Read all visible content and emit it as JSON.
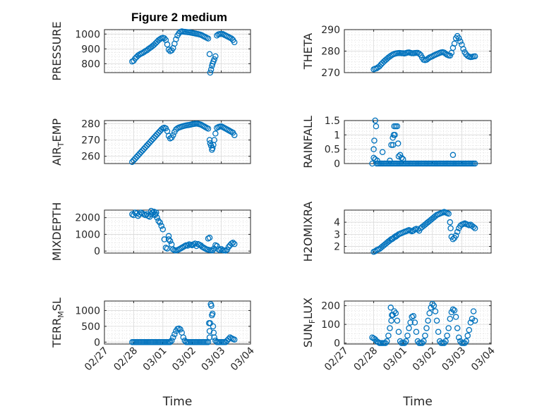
{
  "figure": {
    "title": "Figure 2 medium",
    "xlabel": "Time"
  },
  "chart_data": [
    {
      "type": "scatter",
      "ylabel": "PRESSURE",
      "yticks": [
        800,
        900,
        1000
      ],
      "ylim": [
        740,
        1030
      ],
      "xlim": [
        0,
        5
      ],
      "xticks": [
        "02/27",
        "02/28",
        "03/01",
        "03/02",
        "03/03",
        "03/04"
      ],
      "grid": true,
      "x": [
        0.95,
        1.0,
        1.05,
        1.1,
        1.15,
        1.2,
        1.25,
        1.3,
        1.35,
        1.4,
        1.45,
        1.5,
        1.55,
        1.6,
        1.65,
        1.7,
        1.75,
        1.8,
        1.85,
        1.9,
        1.95,
        2.0,
        2.05,
        2.1,
        2.15,
        2.2,
        2.25,
        2.3,
        2.35,
        2.4,
        2.45,
        2.5,
        2.55,
        2.6,
        2.65,
        2.7,
        2.75,
        2.8,
        2.85,
        2.9,
        2.95,
        3.0,
        3.05,
        3.1,
        3.15,
        3.2,
        3.25,
        3.3,
        3.35,
        3.4,
        3.45,
        3.5,
        3.55,
        3.6,
        3.62,
        3.65,
        3.68,
        3.7,
        3.73,
        3.76,
        3.8,
        3.85,
        3.9,
        3.95,
        4.0,
        4.05,
        4.1,
        4.15,
        4.2,
        4.25,
        4.3,
        4.35,
        4.4,
        4.45
      ],
      "y": [
        815,
        820,
        835,
        845,
        855,
        862,
        868,
        872,
        878,
        885,
        890,
        898,
        905,
        912,
        920,
        928,
        938,
        948,
        958,
        965,
        972,
        975,
        972,
        960,
        930,
        895,
        885,
        890,
        905,
        935,
        965,
        990,
        1005,
        1015,
        1018,
        1016,
        1015,
        1014,
        1013,
        1012,
        1010,
        1008,
        1006,
        1004,
        1002,
        1000,
        998,
        995,
        990,
        985,
        980,
        975,
        970,
        865,
        740,
        760,
        785,
        800,
        815,
        830,
        850,
        990,
        998,
        1000,
        1001,
        1000,
        995,
        990,
        985,
        980,
        975,
        970,
        960,
        945
      ]
    },
    {
      "type": "scatter",
      "ylabel": "THETA",
      "yticks": [
        270,
        280,
        290
      ],
      "ylim": [
        270,
        290
      ],
      "xlim": [
        0,
        5
      ],
      "xticks": [
        "02/27",
        "02/28",
        "03/01",
        "03/02",
        "03/03",
        "03/04"
      ],
      "grid": true,
      "x": [
        1.0,
        1.05,
        1.1,
        1.15,
        1.2,
        1.25,
        1.3,
        1.35,
        1.4,
        1.45,
        1.5,
        1.55,
        1.6,
        1.65,
        1.7,
        1.75,
        1.8,
        1.85,
        1.9,
        1.95,
        2.0,
        2.05,
        2.1,
        2.15,
        2.2,
        2.25,
        2.3,
        2.35,
        2.4,
        2.45,
        2.5,
        2.55,
        2.6,
        2.65,
        2.7,
        2.75,
        2.8,
        2.85,
        2.9,
        2.95,
        3.0,
        3.05,
        3.1,
        3.15,
        3.2,
        3.25,
        3.3,
        3.35,
        3.4,
        3.45,
        3.5,
        3.55,
        3.6,
        3.65,
        3.7,
        3.75,
        3.8,
        3.85,
        3.9,
        3.95,
        4.0,
        4.05,
        4.1,
        4.15,
        4.2,
        4.25,
        4.3,
        4.35,
        4.4,
        4.45
      ],
      "y": [
        271.5,
        271.8,
        272,
        272.5,
        273,
        273.8,
        274.5,
        275.2,
        275.8,
        276.4,
        277,
        277.5,
        278,
        278.4,
        278.7,
        278.9,
        279,
        279.1,
        279.1,
        279,
        279,
        278.9,
        279.1,
        279.3,
        279.4,
        279.2,
        279,
        279,
        279.1,
        279.2,
        279.2,
        278.8,
        278.2,
        277,
        276,
        275.8,
        276,
        276.5,
        277,
        277.3,
        277.6,
        278,
        278.3,
        278.6,
        278.9,
        279.2,
        279.4,
        279.5,
        279.3,
        278.8,
        278.3,
        278,
        277.9,
        279.2,
        281.5,
        283.5,
        286,
        287,
        286,
        284.5,
        283,
        281,
        279.5,
        278.5,
        277.8,
        277.4,
        277.2,
        277.3,
        277.5,
        277.6
      ]
    },
    {
      "type": "scatter",
      "ylabel": "AIR_TEMP",
      "yticks": [
        260,
        270,
        280
      ],
      "ylim": [
        255.5,
        282
      ],
      "xlim": [
        0,
        5
      ],
      "xticks": [
        "02/27",
        "02/28",
        "03/01",
        "03/02",
        "03/03",
        "03/04"
      ],
      "grid": true,
      "x": [
        0.95,
        1.0,
        1.05,
        1.1,
        1.15,
        1.2,
        1.25,
        1.3,
        1.35,
        1.4,
        1.45,
        1.5,
        1.55,
        1.6,
        1.65,
        1.7,
        1.75,
        1.8,
        1.85,
        1.9,
        1.95,
        2.0,
        2.05,
        2.1,
        2.15,
        2.2,
        2.25,
        2.3,
        2.35,
        2.4,
        2.45,
        2.5,
        2.55,
        2.6,
        2.65,
        2.7,
        2.75,
        2.8,
        2.85,
        2.9,
        2.95,
        3.0,
        3.05,
        3.1,
        3.15,
        3.2,
        3.25,
        3.3,
        3.35,
        3.4,
        3.45,
        3.5,
        3.55,
        3.6,
        3.62,
        3.65,
        3.68,
        3.7,
        3.73,
        3.76,
        3.8,
        3.85,
        3.9,
        3.95,
        4.0,
        4.05,
        4.1,
        4.15,
        4.2,
        4.25,
        4.3,
        4.35,
        4.4,
        4.45
      ],
      "y": [
        256.5,
        257.5,
        258.5,
        259.5,
        260.5,
        261.5,
        262.5,
        263.5,
        264.5,
        265.5,
        266.5,
        267.5,
        268.5,
        269.5,
        270.5,
        271.5,
        272.5,
        273.5,
        274.5,
        275.5,
        276.5,
        277.3,
        277.6,
        277.2,
        275.5,
        272.5,
        271,
        271.5,
        273,
        275,
        276.5,
        277.2,
        277.7,
        278,
        278.3,
        278.6,
        278.8,
        279,
        279.2,
        279.3,
        279.5,
        279.7,
        279.9,
        280,
        280.1,
        280,
        279.8,
        279.5,
        279,
        278.5,
        278,
        277.5,
        277,
        270,
        268,
        266.5,
        264,
        265,
        267,
        270,
        274,
        277.5,
        278,
        278.3,
        278.4,
        278,
        277.5,
        277,
        276.5,
        276,
        275.5,
        275,
        274.5,
        273
      ]
    },
    {
      "type": "scatter",
      "ylabel": "RAINFALL",
      "yticks": [
        0,
        0.5,
        1,
        1.5
      ],
      "ylim": [
        0,
        1.5
      ],
      "xlim": [
        0,
        5
      ],
      "xticks": [
        "02/27",
        "02/28",
        "03/01",
        "03/02",
        "03/03",
        "03/04"
      ],
      "grid": true,
      "x": [
        0.95,
        1.0,
        1.02,
        1.05,
        1.08,
        1.1,
        1.15,
        1.2,
        1.25,
        1.3,
        1.35,
        1.4,
        1.45,
        1.5,
        1.55,
        1.6,
        1.65,
        1.7,
        1.75,
        1.8,
        1.85,
        1.9,
        1.95,
        2.0,
        2.05,
        2.1,
        2.15,
        2.2,
        2.25,
        2.3,
        2.35,
        2.4,
        2.45,
        2.5,
        2.55,
        2.6,
        2.65,
        2.7,
        2.75,
        2.8,
        2.85,
        2.9,
        2.95,
        3.0,
        3.05,
        3.1,
        3.15,
        3.2,
        3.25,
        3.3,
        3.35,
        3.4,
        3.45,
        3.5,
        3.55,
        3.6,
        3.65,
        3.7,
        3.75,
        3.8,
        3.85,
        3.9,
        3.95,
        4.0,
        4.05,
        4.1,
        4.15,
        4.2,
        4.25,
        4.3,
        4.35,
        4.4,
        4.45,
        1.05,
        1.0,
        1.12,
        1.3,
        1.55,
        1.6,
        1.65,
        1.68,
        1.72,
        1.75,
        1.8,
        1.83,
        1.85,
        1.9,
        1.95,
        2.0,
        1.7,
        1.66,
        3.7
      ],
      "y": [
        0,
        0.5,
        0.8,
        1.5,
        1.3,
        0,
        0,
        0,
        0,
        0,
        0,
        0,
        0,
        0,
        0,
        0,
        0,
        0,
        0,
        0,
        0,
        0,
        0,
        0,
        0,
        0,
        0,
        0,
        0,
        0,
        0,
        0,
        0,
        0,
        0,
        0,
        0,
        0,
        0,
        0,
        0,
        0,
        0,
        0,
        0,
        0,
        0,
        0,
        0,
        0,
        0,
        0,
        0,
        0,
        0,
        0,
        0,
        0,
        0,
        0,
        0,
        0,
        0,
        0,
        0,
        0,
        0,
        0,
        0,
        0,
        0,
        0,
        0,
        0.15,
        0.2,
        0.1,
        0.4,
        0.1,
        0.65,
        0.9,
        1.0,
        1.0,
        1.3,
        1.3,
        0.7,
        0.25,
        0.3,
        0.2,
        0.15,
        1.3,
        0.65,
        0.3
      ]
    },
    {
      "type": "scatter",
      "ylabel": "MIXDEPTH",
      "yticks": [
        0,
        1000,
        2000
      ],
      "ylim": [
        -120,
        2450
      ],
      "xlim": [
        0,
        5
      ],
      "xticks": [
        "02/27",
        "02/28",
        "03/01",
        "03/02",
        "03/03",
        "03/04"
      ],
      "grid": true,
      "x": [
        0.95,
        1.0,
        1.05,
        1.1,
        1.15,
        1.2,
        1.25,
        1.3,
        1.35,
        1.4,
        1.45,
        1.5,
        1.55,
        1.6,
        1.65,
        1.7,
        1.75,
        1.8,
        1.85,
        1.9,
        1.95,
        2.0,
        2.05,
        2.1,
        2.15,
        2.2,
        2.25,
        2.3,
        2.35,
        2.4,
        2.45,
        2.5,
        2.55,
        2.6,
        2.65,
        2.7,
        2.75,
        2.8,
        2.85,
        2.9,
        2.95,
        3.0,
        3.05,
        3.1,
        3.15,
        3.2,
        3.25,
        3.3,
        3.35,
        3.4,
        3.45,
        3.5,
        3.55,
        3.6,
        3.65,
        3.7,
        3.75,
        3.8,
        3.85,
        3.9,
        3.95,
        4.0,
        4.05,
        4.1,
        4.15,
        4.2,
        4.25,
        4.3,
        4.35,
        4.4,
        4.45,
        1.6,
        1.65,
        1.72,
        1.77,
        3.6,
        3.55,
        2.2
      ],
      "y": [
        2200,
        2150,
        2300,
        2250,
        2100,
        2200,
        2300,
        2250,
        2200,
        2150,
        2200,
        2100,
        2050,
        2200,
        2300,
        2350,
        2200,
        2000,
        1800,
        1700,
        1500,
        1300,
        700,
        200,
        150,
        700,
        600,
        400,
        100,
        50,
        40,
        60,
        100,
        150,
        200,
        250,
        300,
        350,
        320,
        400,
        380,
        350,
        400,
        450,
        300,
        420,
        380,
        340,
        250,
        200,
        150,
        100,
        80,
        60,
        50,
        40,
        150,
        350,
        300,
        100,
        60,
        120,
        50,
        40,
        30,
        80,
        250,
        350,
        450,
        500,
        420,
        2400,
        2300,
        2150,
        2300,
        800,
        750,
        900
      ]
    },
    {
      "type": "scatter",
      "ylabel": "H2OMIXRA",
      "yticks": [
        2,
        3,
        4
      ],
      "ylim": [
        1.45,
        5.0
      ],
      "xlim": [
        0,
        5
      ],
      "xticks": [
        "02/27",
        "02/28",
        "03/01",
        "03/02",
        "03/03",
        "03/04"
      ],
      "grid": true,
      "x": [
        1.0,
        1.05,
        1.1,
        1.15,
        1.2,
        1.25,
        1.3,
        1.35,
        1.4,
        1.45,
        1.5,
        1.55,
        1.6,
        1.65,
        1.7,
        1.75,
        1.8,
        1.85,
        1.9,
        1.95,
        2.0,
        2.05,
        2.1,
        2.15,
        2.2,
        2.25,
        2.3,
        2.35,
        2.4,
        2.45,
        2.5,
        2.55,
        2.6,
        2.65,
        2.7,
        2.75,
        2.8,
        2.85,
        2.9,
        2.95,
        3.0,
        3.05,
        3.1,
        3.15,
        3.2,
        3.25,
        3.3,
        3.35,
        3.4,
        3.45,
        3.5,
        3.55,
        3.6,
        3.62,
        3.65,
        3.7,
        3.75,
        3.8,
        3.85,
        3.9,
        3.95,
        4.0,
        4.05,
        4.1,
        4.15,
        4.2,
        4.25,
        4.3,
        4.35,
        4.4,
        4.45,
        1.5,
        1.62,
        1.75
      ],
      "y": [
        1.55,
        1.6,
        1.7,
        1.75,
        1.8,
        1.9,
        2.0,
        2.1,
        2.2,
        2.3,
        2.4,
        2.5,
        2.6,
        2.65,
        2.75,
        2.85,
        2.9,
        3.0,
        3.05,
        3.1,
        3.15,
        3.2,
        3.25,
        3.3,
        3.35,
        3.3,
        3.25,
        3.3,
        3.4,
        3.45,
        3.4,
        3.3,
        3.5,
        3.6,
        3.7,
        3.8,
        3.9,
        4.0,
        4.1,
        4.2,
        4.3,
        4.4,
        4.5,
        4.6,
        4.65,
        4.7,
        4.75,
        4.8,
        4.85,
        4.8,
        4.75,
        4.7,
        4.0,
        3.5,
        2.8,
        2.6,
        2.7,
        2.9,
        3.2,
        3.5,
        3.7,
        3.8,
        3.85,
        3.9,
        3.85,
        3.8,
        3.75,
        3.8,
        3.7,
        3.6,
        3.5,
        2.4,
        2.6,
        2.8
      ]
    },
    {
      "type": "scatter",
      "ylabel": "TERR_MSL",
      "yticks": [
        0,
        500,
        1000
      ],
      "ylim": [
        -60,
        1300
      ],
      "xlim": [
        0,
        5
      ],
      "xticks": [
        "02/27",
        "02/28",
        "03/01",
        "03/02",
        "03/03",
        "03/04"
      ],
      "grid": true,
      "x": [
        0.95,
        1.0,
        1.05,
        1.1,
        1.15,
        1.2,
        1.25,
        1.3,
        1.35,
        1.4,
        1.45,
        1.5,
        1.55,
        1.6,
        1.65,
        1.7,
        1.75,
        1.8,
        1.85,
        1.9,
        1.95,
        2.0,
        2.05,
        2.1,
        2.15,
        2.2,
        2.25,
        2.3,
        2.35,
        2.4,
        2.45,
        2.5,
        2.55,
        2.6,
        2.65,
        2.7,
        2.75,
        2.8,
        2.85,
        2.9,
        2.95,
        3.0,
        3.05,
        3.1,
        3.15,
        3.2,
        3.25,
        3.3,
        3.35,
        3.4,
        3.45,
        3.5,
        3.55,
        3.6,
        3.62,
        3.64,
        3.66,
        3.68,
        3.7,
        3.72,
        3.74,
        3.76,
        3.8,
        3.85,
        3.9,
        3.95,
        4.0,
        4.05,
        4.1,
        4.15,
        4.2,
        4.25,
        4.3,
        4.35,
        4.4,
        4.45,
        3.58,
        3.6
      ],
      "y": [
        0,
        0,
        0,
        0,
        0,
        0,
        0,
        0,
        0,
        0,
        0,
        0,
        0,
        0,
        0,
        0,
        0,
        0,
        0,
        0,
        0,
        0,
        0,
        0,
        0,
        0,
        0,
        50,
        150,
        250,
        350,
        420,
        430,
        400,
        300,
        150,
        50,
        0,
        0,
        0,
        0,
        0,
        0,
        0,
        0,
        0,
        0,
        0,
        0,
        0,
        0,
        0,
        0,
        350,
        600,
        1200,
        1150,
        850,
        900,
        500,
        300,
        150,
        50,
        0,
        0,
        0,
        0,
        0,
        0,
        0,
        50,
        100,
        150,
        120,
        100,
        80,
        600,
        150
      ]
    },
    {
      "type": "scatter",
      "ylabel": "SUN_FLUX",
      "yticks": [
        0,
        100,
        200
      ],
      "ylim": [
        -5,
        225
      ],
      "xlim": [
        0,
        5
      ],
      "xticks": [
        "02/27",
        "02/28",
        "03/01",
        "03/02",
        "03/03",
        "03/04"
      ],
      "grid": true,
      "x": [
        0.95,
        1.0,
        1.05,
        1.1,
        1.15,
        1.2,
        1.25,
        1.3,
        1.35,
        1.4,
        1.45,
        1.5,
        1.55,
        1.6,
        1.65,
        1.7,
        1.75,
        1.8,
        1.85,
        1.9,
        1.95,
        2.0,
        2.05,
        2.1,
        2.15,
        2.2,
        2.25,
        2.3,
        2.35,
        2.4,
        2.45,
        2.5,
        2.55,
        2.6,
        2.65,
        2.7,
        2.75,
        2.8,
        2.85,
        2.9,
        2.95,
        3.0,
        3.05,
        3.1,
        3.15,
        3.2,
        3.25,
        3.3,
        3.35,
        3.4,
        3.45,
        3.5,
        3.55,
        3.6,
        3.65,
        3.7,
        3.75,
        3.8,
        3.85,
        3.9,
        3.95,
        4.0,
        4.05,
        4.1,
        4.15,
        4.2,
        4.25,
        4.3,
        4.35,
        4.4,
        4.45,
        1.58,
        1.62
      ],
      "y": [
        30,
        25,
        20,
        10,
        5,
        0,
        0,
        0,
        0,
        0,
        10,
        40,
        80,
        120,
        150,
        170,
        160,
        120,
        60,
        10,
        0,
        0,
        0,
        10,
        40,
        80,
        110,
        140,
        145,
        110,
        60,
        10,
        0,
        0,
        0,
        10,
        40,
        80,
        120,
        160,
        190,
        210,
        200,
        170,
        120,
        60,
        10,
        0,
        0,
        0,
        10,
        40,
        80,
        130,
        165,
        180,
        175,
        140,
        80,
        30,
        10,
        0,
        0,
        0,
        10,
        40,
        70,
        110,
        130,
        170,
        120,
        190,
        150
      ]
    }
  ]
}
